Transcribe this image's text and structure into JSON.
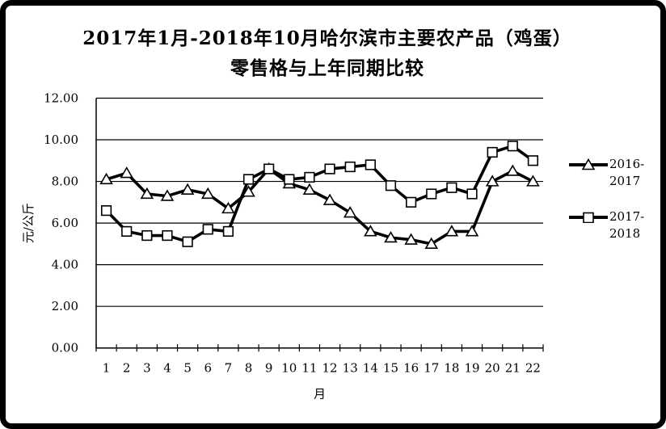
{
  "window": {
    "background": "#ffffff",
    "frame_color": "#000000"
  },
  "chart_data": {
    "type": "line",
    "title": "2017年1月-2018年10月哈尔滨市主要农产品（鸡蛋）",
    "subtitle": "零售格与上年同期比较",
    "xlabel": "月",
    "ylabel": "元/公斤",
    "ylim": [
      0,
      12
    ],
    "ytick_step": 2,
    "yticks": [
      "0.00",
      "2.00",
      "4.00",
      "6.00",
      "8.00",
      "10.00",
      "12.00"
    ],
    "grid": "horizontal",
    "legend_position": "right",
    "line_color": "#000000",
    "marker_fill": "#ffffff",
    "categories": [
      "1",
      "2",
      "3",
      "4",
      "5",
      "6",
      "7",
      "8",
      "9",
      "10",
      "11",
      "12",
      "13",
      "14",
      "15",
      "16",
      "17",
      "18",
      "19",
      "20",
      "21",
      "22"
    ],
    "series": [
      {
        "name": "2016-2017",
        "marker": "triangle",
        "values": [
          8.1,
          8.4,
          7.4,
          7.3,
          7.6,
          7.4,
          6.7,
          7.5,
          8.6,
          7.9,
          7.6,
          7.1,
          6.5,
          5.6,
          5.3,
          5.2,
          5.0,
          5.6,
          5.6,
          8.0,
          8.5,
          8.0
        ]
      },
      {
        "name": "2017-2018",
        "marker": "square",
        "values": [
          6.6,
          5.6,
          5.4,
          5.4,
          5.1,
          5.7,
          5.6,
          8.1,
          8.6,
          8.1,
          8.2,
          8.6,
          8.7,
          8.8,
          7.8,
          7.0,
          7.4,
          7.7,
          7.4,
          9.4,
          9.7,
          9.0
        ]
      }
    ]
  }
}
